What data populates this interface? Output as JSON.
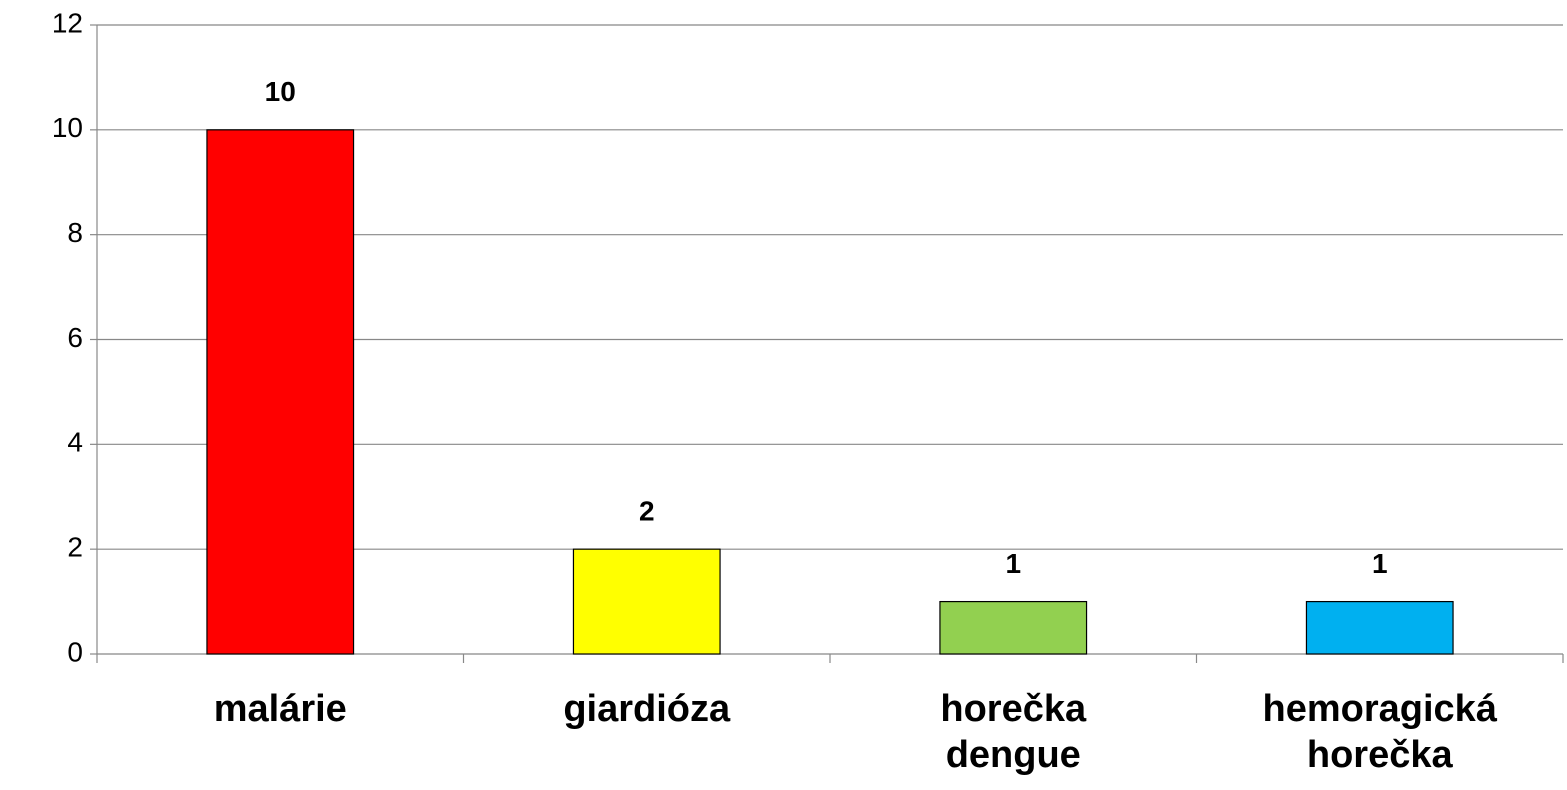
{
  "chart_data": {
    "type": "bar",
    "categories": [
      "malárie",
      "giardióza",
      "horečka dengue",
      "hemoragická horečka"
    ],
    "values": [
      10,
      2,
      1,
      1
    ],
    "colors": [
      "#ff0000",
      "#ffff00",
      "#92d050",
      "#00b0f0"
    ],
    "ylim": [
      0,
      12
    ],
    "yticks": [
      0,
      2,
      4,
      6,
      8,
      10,
      12
    ],
    "grid": true,
    "data_labels": true
  }
}
